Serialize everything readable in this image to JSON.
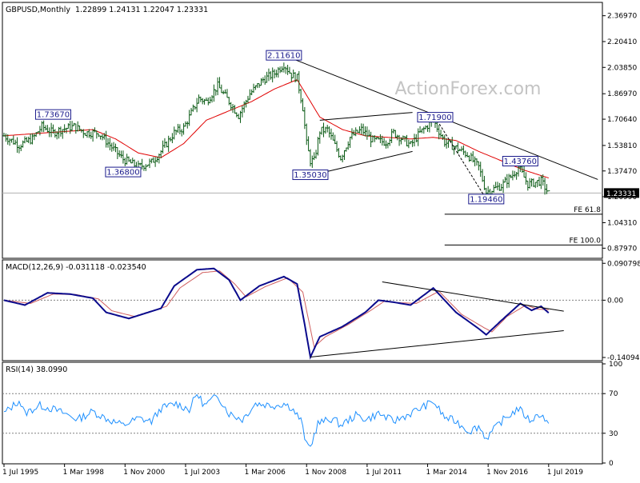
{
  "chart_data": [
    {
      "type": "bar",
      "panel": "price",
      "title": "GBPUSD,Monthly  1.22899 1.24131 1.22047 1.23331",
      "watermark": "ActionForex.com",
      "ylim": [
        0.82,
        2.45
      ],
      "yticks": [
        "2.36970",
        "2.20410",
        "2.03850",
        "1.86970",
        "1.70640",
        "1.53810",
        "1.37470",
        "1.20990",
        "1.04310",
        "0.87970"
      ],
      "ytick_values": [
        2.3697,
        2.2041,
        2.0385,
        1.8697,
        1.7064,
        1.5381,
        1.3747,
        1.2099,
        1.0431,
        0.8797
      ],
      "xticks": [
        "1 Jul 1995",
        "1 Mar 1998",
        "1 Nov 2000",
        "1 Jul 2003",
        "1 Mar 2006",
        "1 Nov 2008",
        "1 Jul 2011",
        "1 Mar 2014",
        "1 Nov 2016",
        "1 Jul 2019"
      ],
      "price_anchors": [
        [
          "1995-07",
          1.6
        ],
        [
          "1996-03",
          1.54
        ],
        [
          "1996-10",
          1.58
        ],
        [
          "1997-03",
          1.66
        ],
        [
          "1997-09",
          1.62
        ],
        [
          "1998-01",
          1.64
        ],
        [
          "1998-08",
          1.66
        ],
        [
          "1999-02",
          1.62
        ],
        [
          "1999-09",
          1.62
        ],
        [
          "2000-06",
          1.5
        ],
        [
          "2000-10",
          1.45
        ],
        [
          "2001-06",
          1.4
        ],
        [
          "2002-01",
          1.43
        ],
        [
          "2002-06",
          1.5
        ],
        [
          "2003-01",
          1.62
        ],
        [
          "2003-06",
          1.65
        ],
        [
          "2004-02",
          1.84
        ],
        [
          "2004-06",
          1.82
        ],
        [
          "2004-12",
          1.92
        ],
        [
          "2005-06",
          1.82
        ],
        [
          "2005-11",
          1.73
        ],
        [
          "2006-05",
          1.87
        ],
        [
          "2006-12",
          1.96
        ],
        [
          "2007-06",
          2.0
        ],
        [
          "2007-11",
          2.06
        ],
        [
          "2008-03",
          1.99
        ],
        [
          "2008-06",
          1.97
        ],
        [
          "2008-09",
          1.78
        ],
        [
          "2008-11",
          1.55
        ],
        [
          "2009-01",
          1.44
        ],
        [
          "2009-03",
          1.44
        ],
        [
          "2009-06",
          1.63
        ],
        [
          "2009-10",
          1.64
        ],
        [
          "2010-05",
          1.46
        ],
        [
          "2010-10",
          1.59
        ],
        [
          "2011-04",
          1.64
        ],
        [
          "2011-10",
          1.57
        ],
        [
          "2012-05",
          1.56
        ],
        [
          "2012-09",
          1.62
        ],
        [
          "2013-06",
          1.54
        ],
        [
          "2013-11",
          1.62
        ],
        [
          "2014-06",
          1.7
        ],
        [
          "2014-12",
          1.56
        ],
        [
          "2015-05",
          1.53
        ],
        [
          "2015-12",
          1.48
        ],
        [
          "2016-06",
          1.4
        ],
        [
          "2016-10",
          1.24
        ],
        [
          "2017-06",
          1.28
        ],
        [
          "2017-12",
          1.35
        ],
        [
          "2018-03",
          1.4
        ],
        [
          "2018-08",
          1.29
        ],
        [
          "2019-03",
          1.31
        ],
        [
          "2019-07",
          1.23
        ]
      ],
      "ma_anchors": [
        [
          "1995-07",
          1.6
        ],
        [
          "1997-06",
          1.62
        ],
        [
          "1998-06",
          1.63
        ],
        [
          "1999-06",
          1.64
        ],
        [
          "2000-06",
          1.58
        ],
        [
          "2001-06",
          1.49
        ],
        [
          "2002-06",
          1.46
        ],
        [
          "2003-06",
          1.55
        ],
        [
          "2004-06",
          1.7
        ],
        [
          "2005-06",
          1.76
        ],
        [
          "2006-06",
          1.82
        ],
        [
          "2007-06",
          1.9
        ],
        [
          "2008-06",
          1.96
        ],
        [
          "2009-06",
          1.72
        ],
        [
          "2010-06",
          1.64
        ],
        [
          "2011-06",
          1.6
        ],
        [
          "2012-06",
          1.59
        ],
        [
          "2013-06",
          1.58
        ],
        [
          "2014-06",
          1.59
        ],
        [
          "2015-06",
          1.57
        ],
        [
          "2016-06",
          1.5
        ],
        [
          "2017-06",
          1.44
        ],
        [
          "2018-06",
          1.38
        ],
        [
          "2019-07",
          1.33
        ]
      ],
      "annotations": [
        {
          "label": "1.73670",
          "date": "1997-09",
          "value": 1.7367
        },
        {
          "label": "1.36800",
          "date": "2000-10",
          "value": 1.368
        },
        {
          "label": "2.11610",
          "date": "2007-11",
          "value": 2.1161
        },
        {
          "label": "1.35030",
          "date": "2009-01",
          "value": 1.3503
        },
        {
          "label": "1.71900",
          "date": "2014-07",
          "value": 1.719
        },
        {
          "label": "1.43760",
          "date": "2018-04",
          "value": 1.4376
        },
        {
          "label": "1.19460",
          "date": "2016-10",
          "value": 1.1946
        }
      ],
      "trendlines": [
        {
          "from": [
            "2007-11",
            2.1161
          ],
          "to": [
            "2021-09",
            1.32
          ]
        },
        {
          "from": [
            "2009-06",
            1.7
          ],
          "to": [
            "2013-07",
            1.75
          ]
        },
        {
          "from": [
            "2009-06",
            1.36
          ],
          "to": [
            "2013-07",
            1.5
          ]
        },
        {
          "from": [
            "2014-07",
            1.719
          ],
          "to": [
            "2016-10",
            1.1946
          ]
        }
      ],
      "fib_levels": [
        {
          "label": "FE 61.8",
          "value": 1.0975,
          "from": "2014-12"
        },
        {
          "label": "FE 100.0",
          "value": 0.9,
          "from": "2014-12"
        }
      ],
      "current_price": {
        "label": "1.23331",
        "value": 1.23331
      }
    },
    {
      "type": "line",
      "panel": "macd",
      "title": "MACD(12,26,9) -0.031118 -0.023540",
      "ylim": [
        -0.1468,
        0.0972
      ],
      "yticks": [
        "0.090798",
        "0.00",
        "-0.14094"
      ],
      "ytick_values": [
        0.090798,
        0.0,
        -0.14094
      ],
      "zero_line": 0.0,
      "macd_anchors": [
        [
          "1995-07",
          0.0
        ],
        [
          "1996-06",
          -0.012
        ],
        [
          "1997-06",
          0.018
        ],
        [
          "1998-06",
          0.015
        ],
        [
          "1999-06",
          0.005
        ],
        [
          "2000-01",
          -0.03
        ],
        [
          "2001-01",
          -0.045
        ],
        [
          "2002-06",
          -0.02
        ],
        [
          "2003-01",
          0.035
        ],
        [
          "2004-01",
          0.075
        ],
        [
          "2004-10",
          0.078
        ],
        [
          "2005-06",
          0.05
        ],
        [
          "2005-12",
          0.0
        ],
        [
          "2006-10",
          0.035
        ],
        [
          "2007-11",
          0.058
        ],
        [
          "2008-06",
          0.04
        ],
        [
          "2008-10",
          -0.06
        ],
        [
          "2009-01",
          -0.14
        ],
        [
          "2009-06",
          -0.09
        ],
        [
          "2010-06",
          -0.065
        ],
        [
          "2011-06",
          -0.03
        ],
        [
          "2012-01",
          0.0
        ],
        [
          "2012-09",
          -0.005
        ],
        [
          "2013-06",
          -0.012
        ],
        [
          "2014-06",
          0.03
        ],
        [
          "2015-06",
          -0.03
        ],
        [
          "2016-06",
          -0.07
        ],
        [
          "2016-10",
          -0.085
        ],
        [
          "2017-06",
          -0.05
        ],
        [
          "2018-04",
          -0.008
        ],
        [
          "2018-10",
          -0.025
        ],
        [
          "2019-03",
          -0.015
        ],
        [
          "2019-07",
          -0.031
        ]
      ],
      "signal_anchors": [
        [
          "1995-07",
          0.0
        ],
        [
          "1996-09",
          -0.008
        ],
        [
          "1997-09",
          0.015
        ],
        [
          "1998-09",
          0.014
        ],
        [
          "1999-09",
          0.003
        ],
        [
          "2000-04",
          -0.026
        ],
        [
          "2001-04",
          -0.04
        ],
        [
          "2002-09",
          -0.015
        ],
        [
          "2003-04",
          0.03
        ],
        [
          "2004-04",
          0.068
        ],
        [
          "2005-01",
          0.072
        ],
        [
          "2005-09",
          0.04
        ],
        [
          "2006-03",
          0.008
        ],
        [
          "2007-01",
          0.033
        ],
        [
          "2008-01",
          0.055
        ],
        [
          "2008-09",
          0.02
        ],
        [
          "2009-03",
          -0.115
        ],
        [
          "2009-09",
          -0.09
        ],
        [
          "2010-09",
          -0.06
        ],
        [
          "2011-09",
          -0.025
        ],
        [
          "2012-04",
          -0.003
        ],
        [
          "2012-12",
          -0.006
        ],
        [
          "2013-09",
          -0.008
        ],
        [
          "2014-09",
          0.022
        ],
        [
          "2015-09",
          -0.035
        ],
        [
          "2016-09",
          -0.068
        ],
        [
          "2017-01",
          -0.078
        ],
        [
          "2017-09",
          -0.04
        ],
        [
          "2018-07",
          -0.012
        ],
        [
          "2019-01",
          -0.022
        ],
        [
          "2019-07",
          -0.0235
        ]
      ],
      "trendlines": [
        {
          "from": [
            "2009-01",
            -0.14
          ],
          "to": [
            "2020-03",
            -0.075
          ]
        },
        {
          "from": [
            "2012-03",
            0.045
          ],
          "to": [
            "2020-03",
            -0.027
          ]
        }
      ]
    },
    {
      "type": "line",
      "panel": "rsi",
      "title": "RSI(14) 38.0990",
      "ylim": [
        0,
        100
      ],
      "yticks": [
        "100",
        "70",
        "30",
        "0"
      ],
      "ytick_values": [
        100,
        70,
        30,
        0
      ],
      "levels": [
        70,
        30
      ],
      "rsi_anchors": [
        [
          "1995-07",
          50
        ],
        [
          "1996-03",
          63
        ],
        [
          "1996-06",
          50
        ],
        [
          "1997-02",
          58
        ],
        [
          "1997-08",
          55
        ],
        [
          "1998-03",
          50
        ],
        [
          "1998-10",
          44
        ],
        [
          "1999-06",
          52
        ],
        [
          "2000-02",
          44
        ],
        [
          "2000-10",
          38
        ],
        [
          "2001-06",
          45
        ],
        [
          "2002-01",
          42
        ],
        [
          "2002-06",
          55
        ],
        [
          "2003-02",
          60
        ],
        [
          "2003-09",
          54
        ],
        [
          "2004-01",
          70
        ],
        [
          "2004-05",
          58
        ],
        [
          "2004-12",
          68
        ],
        [
          "2005-06",
          50
        ],
        [
          "2006-01",
          44
        ],
        [
          "2006-08",
          60
        ],
        [
          "2007-06",
          58
        ],
        [
          "2007-11",
          60
        ],
        [
          "2008-03",
          56
        ],
        [
          "2008-08",
          43
        ],
        [
          "2008-11",
          18
        ],
        [
          "2009-01",
          16
        ],
        [
          "2009-05",
          40
        ],
        [
          "2010-01",
          45
        ],
        [
          "2010-05",
          38
        ],
        [
          "2011-01",
          48
        ],
        [
          "2011-07",
          44
        ],
        [
          "2012-01",
          50
        ],
        [
          "2012-09",
          42
        ],
        [
          "2013-06",
          50
        ],
        [
          "2014-06",
          62
        ],
        [
          "2014-12",
          46
        ],
        [
          "2015-06",
          42
        ],
        [
          "2016-01",
          32
        ],
        [
          "2016-06",
          37
        ],
        [
          "2016-10",
          25
        ],
        [
          "2017-06",
          42
        ],
        [
          "2018-03",
          55
        ],
        [
          "2018-09",
          43
        ],
        [
          "2019-03",
          50
        ],
        [
          "2019-07",
          38
        ]
      ]
    }
  ]
}
